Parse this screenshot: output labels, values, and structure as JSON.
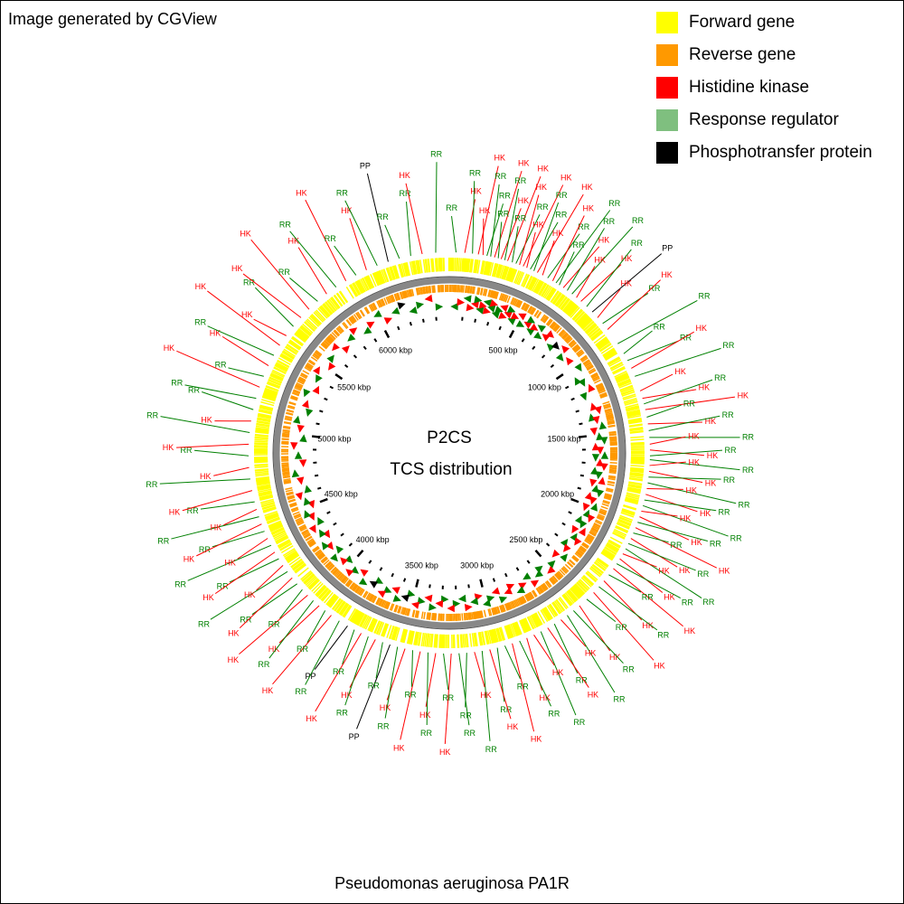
{
  "credit": "Image generated by CGView",
  "species": "Pseudomonas aeruginosa PA1R",
  "center_title": "P2CS",
  "center_subtitle": "TCS distribution",
  "colors": {
    "forward": "#ffff00",
    "reverse": "#ff9900",
    "HK": "#ff0000",
    "RR": "#008000",
    "PP": "#000000",
    "backbone": "#888888"
  },
  "legend": [
    {
      "label": "Forward gene",
      "color": "#ffff00"
    },
    {
      "label": "Reverse gene",
      "color": "#ff9900"
    },
    {
      "label": "Histidine kinase",
      "color": "#ff0000"
    },
    {
      "label": "Response regulator",
      "color": "#7fbf7f"
    },
    {
      "label": "Phosphotransfer protein",
      "color": "#000000"
    }
  ],
  "chart_data": {
    "type": "circular-genome-map",
    "genome_length_kbp": 6500,
    "ticks_kbp": [
      "500 kbp",
      "1000 kbp",
      "1500 kbp",
      "2000 kbp",
      "2500 kbp",
      "3000 kbp",
      "3500 kbp",
      "4000 kbp",
      "4500 kbp",
      "5000 kbp",
      "5500 kbp",
      "6000 kbp"
    ],
    "features_kbp": [
      {
        "kbp": 35,
        "t": "RR"
      },
      {
        "kbp": 80,
        "t": "HK"
      },
      {
        "kbp": 120,
        "t": "RR"
      },
      {
        "kbp": 150,
        "t": "HK"
      },
      {
        "kbp": 175,
        "t": "HK"
      },
      {
        "kbp": 195,
        "t": "RR"
      },
      {
        "kbp": 215,
        "t": "RR"
      },
      {
        "kbp": 235,
        "t": "HK"
      },
      {
        "kbp": 255,
        "t": "RR"
      },
      {
        "kbp": 270,
        "t": "HK"
      },
      {
        "kbp": 290,
        "t": "RR"
      },
      {
        "kbp": 305,
        "t": "HK"
      },
      {
        "kbp": 330,
        "t": "RR"
      },
      {
        "kbp": 350,
        "t": "RR"
      },
      {
        "kbp": 370,
        "t": "HK"
      },
      {
        "kbp": 390,
        "t": "HK"
      },
      {
        "kbp": 410,
        "t": "HK"
      },
      {
        "kbp": 430,
        "t": "RR"
      },
      {
        "kbp": 450,
        "t": "RR"
      },
      {
        "kbp": 470,
        "t": "HK"
      },
      {
        "kbp": 500,
        "t": "HK"
      },
      {
        "kbp": 530,
        "t": "RR"
      },
      {
        "kbp": 560,
        "t": "HK"
      },
      {
        "kbp": 580,
        "t": "RR"
      },
      {
        "kbp": 600,
        "t": "RR"
      },
      {
        "kbp": 625,
        "t": "HK"
      },
      {
        "kbp": 650,
        "t": "RR"
      },
      {
        "kbp": 680,
        "t": "RR"
      },
      {
        "kbp": 710,
        "t": "HK"
      },
      {
        "kbp": 740,
        "t": "HK"
      },
      {
        "kbp": 780,
        "t": "RR"
      },
      {
        "kbp": 820,
        "t": "PP"
      },
      {
        "kbp": 860,
        "t": "HK"
      },
      {
        "kbp": 900,
        "t": "RR"
      },
      {
        "kbp": 940,
        "t": "HK"
      },
      {
        "kbp": 1030,
        "t": "RR"
      },
      {
        "kbp": 1090,
        "t": "RR"
      },
      {
        "kbp": 1130,
        "t": "RR"
      },
      {
        "kbp": 1175,
        "t": "HK"
      },
      {
        "kbp": 1220,
        "t": "RR"
      },
      {
        "kbp": 1300,
        "t": "HK"
      },
      {
        "kbp": 1340,
        "t": "HK"
      },
      {
        "kbp": 1370,
        "t": "RR"
      },
      {
        "kbp": 1400,
        "t": "HK"
      },
      {
        "kbp": 1440,
        "t": "RR"
      },
      {
        "kbp": 1475,
        "t": "HK"
      },
      {
        "kbp": 1510,
        "t": "RR"
      },
      {
        "kbp": 1545,
        "t": "RR"
      },
      {
        "kbp": 1580,
        "t": "HK"
      },
      {
        "kbp": 1610,
        "t": "HK"
      },
      {
        "kbp": 1640,
        "t": "RR"
      },
      {
        "kbp": 1660,
        "t": "RR"
      },
      {
        "kbp": 1690,
        "t": "HK"
      },
      {
        "kbp": 1720,
        "t": "HK"
      },
      {
        "kbp": 1750,
        "t": "RR"
      },
      {
        "kbp": 1780,
        "t": "RR"
      },
      {
        "kbp": 1810,
        "t": "HK"
      },
      {
        "kbp": 1840,
        "t": "HK"
      },
      {
        "kbp": 1870,
        "t": "RR"
      },
      {
        "kbp": 1900,
        "t": "RR"
      },
      {
        "kbp": 1930,
        "t": "HK"
      },
      {
        "kbp": 1960,
        "t": "HK"
      },
      {
        "kbp": 1990,
        "t": "RR"
      },
      {
        "kbp": 2020,
        "t": "HK"
      },
      {
        "kbp": 2050,
        "t": "RR"
      },
      {
        "kbp": 2080,
        "t": "HK"
      },
      {
        "kbp": 2110,
        "t": "RR"
      },
      {
        "kbp": 2140,
        "t": "RR"
      },
      {
        "kbp": 2170,
        "t": "HK"
      },
      {
        "kbp": 2200,
        "t": "HK"
      },
      {
        "kbp": 2230,
        "t": "RR"
      },
      {
        "kbp": 2260,
        "t": "HK"
      },
      {
        "kbp": 2300,
        "t": "RR"
      },
      {
        "kbp": 2340,
        "t": "HK"
      },
      {
        "kbp": 2380,
        "t": "RR"
      },
      {
        "kbp": 2420,
        "t": "HK"
      },
      {
        "kbp": 2470,
        "t": "RR"
      },
      {
        "kbp": 2520,
        "t": "HK"
      },
      {
        "kbp": 2560,
        "t": "RR"
      },
      {
        "kbp": 2600,
        "t": "RR"
      },
      {
        "kbp": 2640,
        "t": "HK"
      },
      {
        "kbp": 2680,
        "t": "RR"
      },
      {
        "kbp": 2720,
        "t": "HK"
      },
      {
        "kbp": 2760,
        "t": "RR"
      },
      {
        "kbp": 2800,
        "t": "HK"
      },
      {
        "kbp": 2840,
        "t": "HK"
      },
      {
        "kbp": 2880,
        "t": "RR"
      },
      {
        "kbp": 2920,
        "t": "HK"
      },
      {
        "kbp": 2960,
        "t": "RR"
      },
      {
        "kbp": 3000,
        "t": "RR"
      },
      {
        "kbp": 3040,
        "t": "HK"
      },
      {
        "kbp": 3080,
        "t": "RR"
      },
      {
        "kbp": 3120,
        "t": "HK"
      },
      {
        "kbp": 3160,
        "t": "RR"
      },
      {
        "kbp": 3200,
        "t": "RR"
      },
      {
        "kbp": 3240,
        "t": "HK"
      },
      {
        "kbp": 3280,
        "t": "RR"
      },
      {
        "kbp": 3320,
        "t": "HK"
      },
      {
        "kbp": 3360,
        "t": "RR"
      },
      {
        "kbp": 3400,
        "t": "HK"
      },
      {
        "kbp": 3440,
        "t": "RR"
      },
      {
        "kbp": 3480,
        "t": "HK"
      },
      {
        "kbp": 3520,
        "t": "RR"
      },
      {
        "kbp": 3560,
        "t": "PP"
      },
      {
        "kbp": 3600,
        "t": "RR"
      },
      {
        "kbp": 3640,
        "t": "HK"
      },
      {
        "kbp": 3680,
        "t": "RR"
      },
      {
        "kbp": 3720,
        "t": "HK"
      },
      {
        "kbp": 3760,
        "t": "RR"
      },
      {
        "kbp": 3800,
        "t": "PP"
      },
      {
        "kbp": 3850,
        "t": "RR"
      },
      {
        "kbp": 3900,
        "t": "HK"
      },
      {
        "kbp": 3940,
        "t": "RR"
      },
      {
        "kbp": 3980,
        "t": "HK"
      },
      {
        "kbp": 4020,
        "t": "RR"
      },
      {
        "kbp": 4060,
        "t": "HK"
      },
      {
        "kbp": 4100,
        "t": "RR"
      },
      {
        "kbp": 4140,
        "t": "RR"
      },
      {
        "kbp": 4180,
        "t": "HK"
      },
      {
        "kbp": 4220,
        "t": "RR"
      },
      {
        "kbp": 4260,
        "t": "HK"
      },
      {
        "kbp": 4300,
        "t": "RR"
      },
      {
        "kbp": 4340,
        "t": "HK"
      },
      {
        "kbp": 4380,
        "t": "RR"
      },
      {
        "kbp": 4420,
        "t": "HK"
      },
      {
        "kbp": 4460,
        "t": "RR"
      },
      {
        "kbp": 4500,
        "t": "HK"
      },
      {
        "kbp": 4540,
        "t": "RR"
      },
      {
        "kbp": 4580,
        "t": "HK"
      },
      {
        "kbp": 4620,
        "t": "RR"
      },
      {
        "kbp": 4680,
        "t": "HK"
      },
      {
        "kbp": 4740,
        "t": "RR"
      },
      {
        "kbp": 4800,
        "t": "HK"
      },
      {
        "kbp": 4860,
        "t": "RR"
      },
      {
        "kbp": 4920,
        "t": "HK"
      },
      {
        "kbp": 4980,
        "t": "RR"
      },
      {
        "kbp": 5040,
        "t": "HK"
      },
      {
        "kbp": 5100,
        "t": "RR"
      },
      {
        "kbp": 5160,
        "t": "RR"
      },
      {
        "kbp": 5220,
        "t": "HK"
      },
      {
        "kbp": 5280,
        "t": "RR"
      },
      {
        "kbp": 5340,
        "t": "HK"
      },
      {
        "kbp": 5400,
        "t": "RR"
      },
      {
        "kbp": 5460,
        "t": "HK"
      },
      {
        "kbp": 5520,
        "t": "HK"
      },
      {
        "kbp": 5580,
        "t": "RR"
      },
      {
        "kbp": 5640,
        "t": "HK"
      },
      {
        "kbp": 5700,
        "t": "HK"
      },
      {
        "kbp": 5760,
        "t": "RR"
      },
      {
        "kbp": 5820,
        "t": "HK"
      },
      {
        "kbp": 5880,
        "t": "RR"
      },
      {
        "kbp": 5940,
        "t": "HK"
      },
      {
        "kbp": 6000,
        "t": "RR"
      },
      {
        "kbp": 6060,
        "t": "HK"
      },
      {
        "kbp": 6120,
        "t": "RR"
      },
      {
        "kbp": 6180,
        "t": "PP"
      },
      {
        "kbp": 6240,
        "t": "RR"
      },
      {
        "kbp": 6300,
        "t": "RR"
      },
      {
        "kbp": 6360,
        "t": "HK"
      },
      {
        "kbp": 6430,
        "t": "RR"
      }
    ]
  }
}
